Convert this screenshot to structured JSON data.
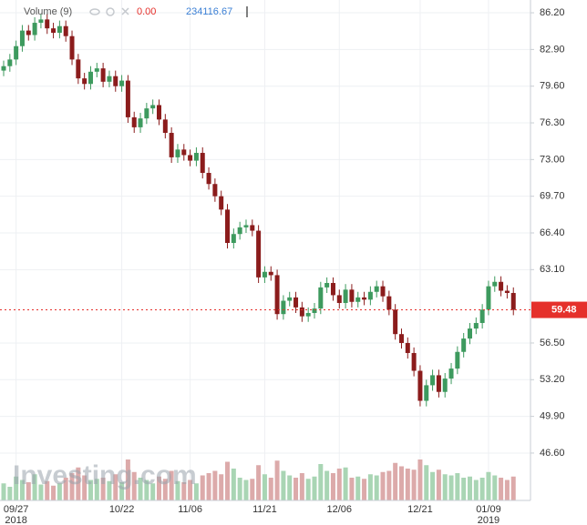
{
  "chart_data": {
    "type": "candlestick",
    "legend": {
      "label": "Volume (9)",
      "value_a": "0.00",
      "value_b": "234116.67"
    },
    "watermark": "Investing.com",
    "categories": [
      null,
      null,
      "09/27",
      null,
      null,
      null,
      null,
      null,
      null,
      null,
      null,
      null,
      null,
      null,
      null,
      null,
      null,
      null,
      null,
      "10/22",
      null,
      null,
      null,
      null,
      null,
      null,
      null,
      null,
      null,
      null,
      "11/06",
      null,
      null,
      null,
      null,
      null,
      null,
      null,
      null,
      null,
      null,
      null,
      "11/21",
      null,
      null,
      null,
      null,
      null,
      null,
      null,
      null,
      null,
      null,
      null,
      "12/06",
      null,
      null,
      null,
      null,
      null,
      null,
      null,
      null,
      null,
      null,
      null,
      null,
      "12/21",
      null,
      null,
      null,
      null,
      null,
      null,
      null,
      null,
      null,
      null,
      "01/09",
      null,
      null,
      null,
      null
    ],
    "years": [
      null,
      null,
      "2018",
      null,
      null,
      null,
      null,
      null,
      null,
      null,
      null,
      null,
      null,
      null,
      null,
      null,
      null,
      null,
      null,
      null,
      null,
      null,
      null,
      null,
      null,
      null,
      null,
      null,
      null,
      null,
      null,
      null,
      null,
      null,
      null,
      null,
      null,
      null,
      null,
      null,
      null,
      null,
      null,
      null,
      null,
      null,
      null,
      null,
      null,
      null,
      null,
      null,
      null,
      null,
      null,
      null,
      null,
      null,
      null,
      null,
      null,
      null,
      null,
      null,
      null,
      null,
      null,
      null,
      null,
      null,
      null,
      null,
      null,
      null,
      null,
      null,
      null,
      null,
      "2019",
      null,
      null,
      null,
      null
    ],
    "ohlc": {
      "up_color": "#3d9a5e",
      "down_color": "#8b1c1c",
      "open": [
        81.0,
        81.4,
        82.0,
        83.2,
        84.6,
        84.2,
        85.3,
        85.6,
        84.8,
        84.4,
        85.0,
        84.1,
        82.0,
        80.3,
        79.8,
        80.9,
        81.2,
        80.0,
        80.5,
        79.6,
        80.1,
        76.8,
        75.9,
        76.7,
        77.6,
        77.9,
        76.6,
        75.4,
        73.2,
        73.9,
        73.4,
        72.9,
        73.6,
        71.8,
        70.8,
        69.7,
        68.5,
        65.5,
        66.3,
        66.9,
        67.1,
        66.6,
        62.4,
        62.9,
        62.6,
        59.1,
        60.3,
        60.6,
        59.7,
        58.9,
        59.2,
        59.6,
        61.5,
        61.9,
        60.8,
        60.1,
        61.3,
        60.2,
        60.6,
        60.4,
        61.1,
        61.6,
        60.7,
        59.5,
        57.3,
        56.5,
        55.6,
        54.0,
        51.3,
        52.7,
        53.6,
        52.1,
        53.3,
        54.2,
        55.7,
        56.9,
        57.8,
        58.3,
        59.5,
        61.6,
        62.0,
        61.2,
        61.0
      ],
      "high": [
        81.9,
        82.5,
        83.7,
        85.1,
        85.1,
        85.8,
        86.1,
        86.1,
        85.3,
        85.5,
        85.5,
        84.6,
        82.5,
        80.8,
        81.4,
        81.7,
        81.7,
        81.0,
        81.0,
        80.6,
        80.6,
        77.3,
        77.2,
        78.1,
        78.4,
        78.4,
        77.1,
        75.9,
        74.4,
        74.4,
        73.9,
        74.1,
        74.1,
        72.3,
        71.3,
        70.2,
        69.0,
        66.8,
        67.4,
        67.6,
        67.6,
        67.1,
        63.4,
        63.4,
        63.1,
        60.8,
        61.1,
        61.1,
        60.2,
        59.7,
        60.1,
        62.0,
        62.4,
        62.4,
        61.3,
        61.8,
        61.8,
        61.1,
        61.1,
        61.6,
        62.1,
        62.1,
        61.2,
        60.0,
        57.8,
        57.0,
        56.1,
        54.5,
        53.2,
        54.1,
        54.1,
        53.8,
        54.7,
        56.2,
        57.4,
        58.3,
        58.8,
        60.0,
        62.1,
        62.5,
        62.5,
        61.7,
        61.5
      ],
      "low": [
        80.5,
        80.9,
        81.5,
        82.7,
        83.7,
        83.7,
        84.8,
        84.3,
        83.9,
        83.9,
        83.6,
        81.5,
        79.8,
        79.3,
        79.3,
        80.4,
        79.5,
        79.5,
        79.1,
        79.1,
        76.3,
        75.4,
        75.4,
        76.2,
        77.1,
        76.1,
        74.9,
        72.7,
        72.7,
        72.9,
        72.4,
        72.4,
        71.3,
        70.3,
        69.2,
        68.0,
        65.0,
        65.0,
        65.8,
        66.4,
        66.1,
        61.9,
        61.9,
        62.1,
        58.6,
        58.6,
        59.8,
        59.2,
        58.4,
        58.4,
        58.7,
        59.1,
        61.0,
        60.3,
        59.6,
        59.6,
        59.7,
        59.7,
        59.9,
        59.9,
        60.6,
        60.2,
        59.0,
        56.8,
        56.0,
        55.1,
        53.5,
        50.8,
        50.8,
        52.2,
        51.6,
        51.6,
        52.8,
        53.7,
        55.2,
        56.4,
        57.3,
        57.8,
        59.0,
        61.1,
        60.7,
        60.5,
        59.0
      ],
      "close": [
        81.4,
        82.0,
        83.2,
        84.6,
        84.2,
        85.3,
        85.6,
        84.8,
        84.4,
        85.0,
        84.1,
        82.0,
        80.3,
        79.8,
        80.9,
        81.2,
        80.0,
        80.5,
        79.6,
        80.1,
        76.8,
        75.9,
        76.7,
        77.6,
        77.9,
        76.6,
        75.4,
        73.2,
        73.9,
        73.4,
        72.9,
        73.6,
        71.8,
        70.8,
        69.7,
        68.5,
        65.5,
        66.3,
        66.9,
        67.1,
        66.6,
        62.4,
        62.9,
        62.6,
        59.1,
        60.3,
        60.6,
        59.7,
        58.9,
        59.2,
        59.6,
        61.5,
        61.9,
        60.8,
        60.1,
        61.3,
        60.2,
        60.6,
        60.4,
        61.1,
        61.6,
        60.7,
        59.5,
        57.3,
        56.5,
        55.6,
        54.0,
        51.3,
        52.7,
        53.6,
        52.1,
        53.3,
        54.2,
        55.7,
        56.9,
        57.8,
        58.3,
        59.5,
        61.6,
        62.0,
        61.2,
        61.0,
        59.48
      ]
    },
    "volume": {
      "up_color": "#a9d5b4",
      "down_color": "#dcaaaa",
      "lim": [
        0,
        1200000
      ],
      "values": [
        150000,
        120000,
        210000,
        180000,
        160000,
        230000,
        140000,
        170000,
        130000,
        150000,
        200000,
        240000,
        290000,
        220000,
        180000,
        190000,
        200000,
        170000,
        230000,
        160000,
        360000,
        250000,
        200000,
        180000,
        150000,
        210000,
        190000,
        260000,
        170000,
        160000,
        180000,
        150000,
        220000,
        240000,
        260000,
        230000,
        340000,
        280000,
        200000,
        180000,
        190000,
        310000,
        230000,
        200000,
        350000,
        260000,
        220000,
        200000,
        240000,
        190000,
        210000,
        320000,
        260000,
        240000,
        280000,
        290000,
        200000,
        210000,
        190000,
        230000,
        220000,
        250000,
        260000,
        330000,
        300000,
        280000,
        270000,
        360000,
        310000,
        250000,
        270000,
        230000,
        220000,
        240000,
        200000,
        210000,
        180000,
        200000,
        250000,
        220000,
        200000,
        180000,
        210000
      ]
    },
    "last_price_color": "#e5302b",
    "ylim": [
      42.34,
      87.35
    ],
    "yticks": [
      {
        "value": 86.2,
        "label": "86.20"
      },
      {
        "value": 82.9,
        "label": "82.90"
      },
      {
        "value": 79.6,
        "label": "79.60"
      },
      {
        "value": 76.3,
        "label": "76.30"
      },
      {
        "value": 73.0,
        "label": "73.00"
      },
      {
        "value": 69.7,
        "label": "69.70"
      },
      {
        "value": 66.4,
        "label": "66.40"
      },
      {
        "value": 63.1,
        "label": "63.10"
      },
      {
        "value": 56.5,
        "label": "56.50"
      },
      {
        "value": 53.2,
        "label": "53.20"
      },
      {
        "value": 49.9,
        "label": "49.90"
      },
      {
        "value": 46.6,
        "label": "46.60"
      }
    ],
    "grid": true
  }
}
